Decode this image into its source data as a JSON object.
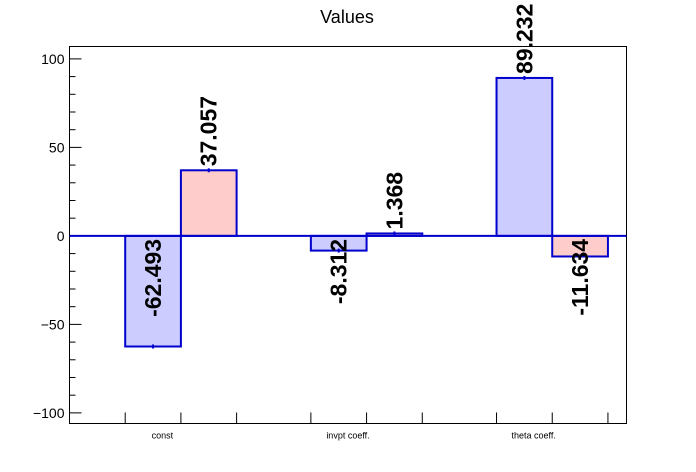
{
  "chart_data": {
    "type": "bar",
    "title": "Values",
    "categories": [
      "const",
      "invpt coeff.",
      "theta coeff."
    ],
    "series": [
      {
        "values": [
          -62.493,
          -8.312,
          89.232
        ],
        "color": "#ccccff",
        "stroke": "#0000cc"
      },
      {
        "values": [
          37.057,
          1.368,
          -11.634
        ],
        "color": "#ffcccc",
        "stroke": "#0000cc"
      }
    ],
    "data_labels": [
      [
        "-62.493",
        "-8.312",
        "89.232"
      ],
      [
        "37.057",
        "1.368",
        "-11.634"
      ]
    ],
    "ylim": [
      -106,
      107
    ],
    "yticks": [
      -100,
      -50,
      0,
      50,
      100
    ],
    "ytick_labels": [
      "−100",
      "−50",
      "0",
      "50",
      "100"
    ],
    "zero_line_color": "#0000cc",
    "grid": false
  }
}
